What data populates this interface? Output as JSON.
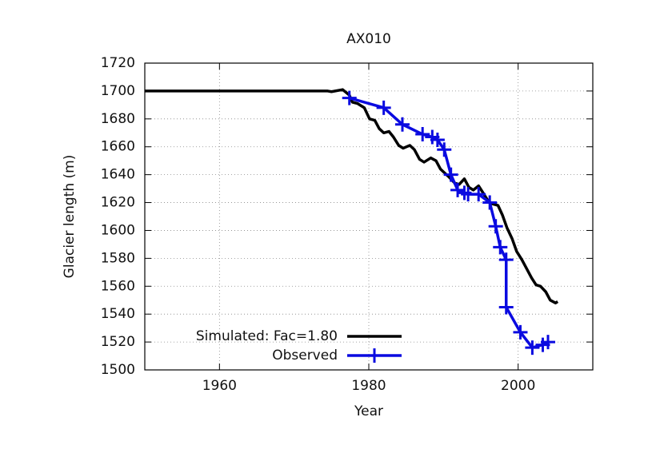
{
  "chart_data": {
    "type": "line",
    "title": "AX010",
    "x_label": "Year",
    "y_label": "Glacier length (m)",
    "xlim": [
      1950,
      2010
    ],
    "xticks": [
      1960,
      1980,
      2000
    ],
    "ylim": [
      1500,
      1720
    ],
    "yticks": [
      1500,
      1520,
      1540,
      1560,
      1580,
      1600,
      1620,
      1640,
      1660,
      1680,
      1700,
      1720
    ],
    "grid": true,
    "legend": "lower left",
    "series": [
      {
        "name": "Simulated: Fac=1.80",
        "color": "#000000",
        "markers": false,
        "x": [
          1950,
          1974.5,
          1975,
          1976.5,
          1977.4,
          1977.8,
          1978.5,
          1979.4,
          1980.1,
          1980.8,
          1981.4,
          1982,
          1982.7,
          1983.3,
          1984,
          1984.6,
          1985.5,
          1986.1,
          1986.8,
          1987.4,
          1988.3,
          1989,
          1989.6,
          1990.2,
          1990.8,
          1991.5,
          1992.1,
          1992.8,
          1993.4,
          1994,
          1994.7,
          1995.3,
          1996,
          1996.6,
          1997.3,
          1997.9,
          1998.5,
          1999.2,
          1999.8,
          2000.5,
          2001.1,
          2001.8,
          2002.4,
          2003,
          2003.7,
          2004.3,
          2005,
          2005.3
        ],
        "values": [
          1700,
          1700,
          1699.5,
          1701,
          1697,
          1692,
          1691,
          1688,
          1680,
          1679,
          1673,
          1670,
          1671,
          1667,
          1661,
          1659,
          1661,
          1658,
          1651,
          1649,
          1652,
          1650,
          1644,
          1641,
          1638,
          1634,
          1633,
          1637,
          1631,
          1629,
          1632,
          1627,
          1621,
          1619,
          1618,
          1611,
          1602,
          1594,
          1585,
          1579,
          1573,
          1566,
          1561,
          1560,
          1556,
          1550,
          1548,
          1549
        ]
      },
      {
        "name": "Observed",
        "color": "#0a0ae0",
        "markers": true,
        "x": [
          1977.4,
          1982,
          1984.5,
          1987.2,
          1988.5,
          1989.2,
          1990.1,
          1991,
          1991.9,
          1992.8,
          1993.3,
          1994.7,
          1996.2,
          1997,
          1997.6,
          1998.4,
          1998.4,
          2000.3,
          2001.9,
          2003.3,
          2004
        ],
        "values": [
          1695,
          1688,
          1676,
          1669,
          1667,
          1665,
          1658,
          1640,
          1629,
          1627,
          1626,
          1626,
          1620,
          1603,
          1588,
          1579,
          1545,
          1527,
          1516,
          1518,
          1520
        ]
      }
    ]
  }
}
